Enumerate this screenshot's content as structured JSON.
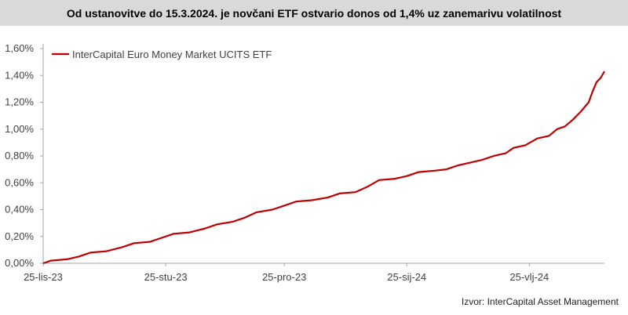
{
  "title": "Od ustanovitve do 15.3.2024. je novčani ETF ostvario donos od 1,4% uz zanemarivu volatilnost",
  "source": "Izvor: InterCapital Asset Management",
  "colors": {
    "series": "#c00000",
    "title_bg": "#d9d9d9",
    "axis": "#a6a6a6"
  },
  "chart_data": {
    "type": "line",
    "title": "Od ustanovitve do 15.3.2024. je novčani ETF ostvario donos od 1,4% uz zanemarivu volatilnost",
    "xlabel": "",
    "ylabel": "",
    "x_tick_labels": [
      "25-lis-23",
      "25-stu-23",
      "25-pro-23",
      "25-sij-24",
      "25-vlj-24"
    ],
    "x_tick_dates": [
      "2023-10-25",
      "2023-11-25",
      "2023-12-25",
      "2024-01-25",
      "2024-02-25"
    ],
    "xlim": [
      "2023-10-25",
      "2024-03-15"
    ],
    "y_tick_labels": [
      "0,00%",
      "0,20%",
      "0,40%",
      "0,60%",
      "0,80%",
      "1,00%",
      "1,20%",
      "1,40%",
      "1,60%"
    ],
    "ylim": [
      0,
      1.6
    ],
    "y_unit": "%",
    "grid": false,
    "legend_position": "top-left",
    "series": [
      {
        "name": "InterCapital Euro Money Market UCITS ETF",
        "color": "#c00000",
        "points": [
          [
            "2023-10-25",
            0.0
          ],
          [
            "2023-10-27",
            0.02
          ],
          [
            "2023-10-31",
            0.03
          ],
          [
            "2023-11-03",
            0.05
          ],
          [
            "2023-11-06",
            0.08
          ],
          [
            "2023-11-10",
            0.09
          ],
          [
            "2023-11-14",
            0.12
          ],
          [
            "2023-11-17",
            0.15
          ],
          [
            "2023-11-21",
            0.16
          ],
          [
            "2023-11-24",
            0.19
          ],
          [
            "2023-11-27",
            0.22
          ],
          [
            "2023-12-01",
            0.23
          ],
          [
            "2023-12-05",
            0.26
          ],
          [
            "2023-12-08",
            0.29
          ],
          [
            "2023-12-12",
            0.31
          ],
          [
            "2023-12-15",
            0.34
          ],
          [
            "2023-12-18",
            0.38
          ],
          [
            "2023-12-22",
            0.4
          ],
          [
            "2023-12-25",
            0.43
          ],
          [
            "2023-12-28",
            0.46
          ],
          [
            "2024-01-01",
            0.47
          ],
          [
            "2024-01-05",
            0.49
          ],
          [
            "2024-01-08",
            0.52
          ],
          [
            "2024-01-12",
            0.53
          ],
          [
            "2024-01-15",
            0.57
          ],
          [
            "2024-01-18",
            0.62
          ],
          [
            "2024-01-22",
            0.63
          ],
          [
            "2024-01-25",
            0.65
          ],
          [
            "2024-01-28",
            0.68
          ],
          [
            "2024-02-01",
            0.69
          ],
          [
            "2024-02-04",
            0.7
          ],
          [
            "2024-02-07",
            0.73
          ],
          [
            "2024-02-10",
            0.75
          ],
          [
            "2024-02-13",
            0.77
          ],
          [
            "2024-02-16",
            0.8
          ],
          [
            "2024-02-19",
            0.82
          ],
          [
            "2024-02-21",
            0.86
          ],
          [
            "2024-02-24",
            0.88
          ],
          [
            "2024-02-27",
            0.93
          ],
          [
            "2024-03-01",
            0.95
          ],
          [
            "2024-03-03",
            1.0
          ],
          [
            "2024-03-05",
            1.02
          ],
          [
            "2024-03-07",
            1.07
          ],
          [
            "2024-03-09",
            1.13
          ],
          [
            "2024-03-11",
            1.2
          ],
          [
            "2024-03-12",
            1.28
          ],
          [
            "2024-03-13",
            1.35
          ],
          [
            "2024-03-14",
            1.38
          ],
          [
            "2024-03-15",
            1.43
          ]
        ]
      }
    ]
  }
}
